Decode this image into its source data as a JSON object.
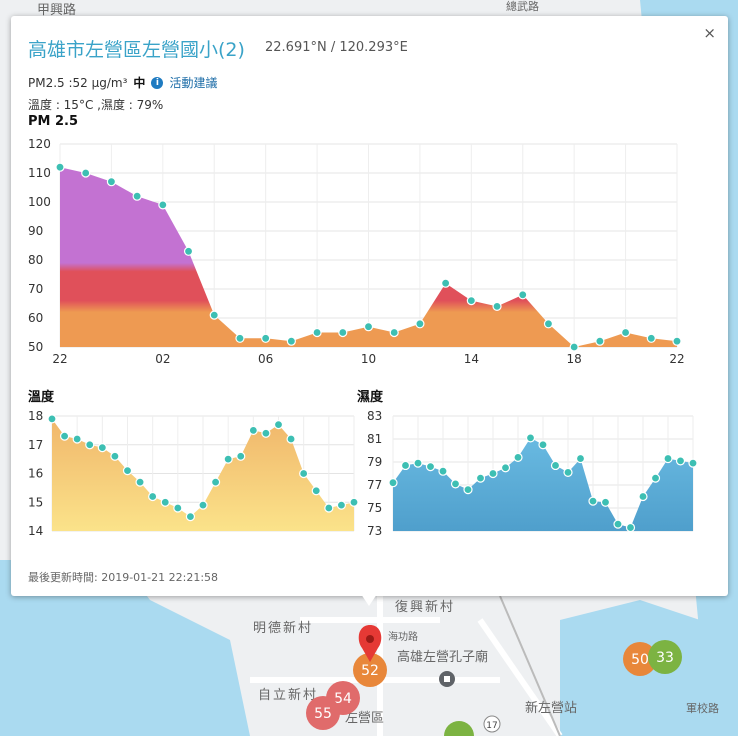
{
  "popup": {
    "title": "高雄市左營區左營國小(2)",
    "coords": "22.691°N / 120.293°E",
    "pm_label": "PM2.5 :52 μg/m³",
    "level": "中",
    "info_icon": "info-circle-icon",
    "advice_link": "活動建議",
    "weather": "溫度 : 15°C ,濕度 : 79%",
    "pm_chart_title": "PM 2.5",
    "temp_chart_title": "溫度",
    "humidity_chart_title": "濕度",
    "updated": "最後更新時間: 2019-01-21 22:21:58",
    "close_icon": "×"
  },
  "map": {
    "labels": [
      "甲興路",
      "明德新村",
      "復興新村",
      "海功路",
      "高雄左營孔子廟",
      "自立新村",
      "左營區",
      "新左營站",
      "軍校路",
      "總武路"
    ],
    "markers": [
      {
        "value": "52",
        "color": "#e8873a"
      },
      {
        "value": "54",
        "color": "#e06b6b"
      },
      {
        "value": "55",
        "color": "#e06b6b"
      },
      {
        "value": "50",
        "color": "#e8873a"
      },
      {
        "value": "33",
        "color": "#7cb342"
      }
    ],
    "pin_icon": "map-pin-icon",
    "temple_icon": "temple-icon",
    "road_number": "17"
  },
  "chart_data": [
    {
      "type": "area",
      "title": "PM 2.5",
      "x_tick_labels": [
        "22",
        "02",
        "06",
        "10",
        "14",
        "18",
        "22"
      ],
      "y_ticks": [
        50,
        60,
        70,
        80,
        90,
        100,
        110,
        120
      ],
      "ylim": [
        50,
        120
      ],
      "values": [
        112,
        110,
        107,
        102,
        99,
        83,
        61,
        53,
        53,
        52,
        55,
        55,
        57,
        55,
        58,
        72,
        66,
        64,
        68,
        58,
        50,
        52,
        55,
        53,
        52
      ],
      "grid": true,
      "colors": {
        "purple": "#c372d2",
        "red": "#e0505a",
        "orange": "#ee9a52",
        "dot": "#3dbfb3"
      }
    },
    {
      "type": "area",
      "title": "溫度",
      "y_ticks": [
        14,
        15,
        16,
        17,
        18
      ],
      "ylim": [
        14,
        18
      ],
      "values": [
        17.9,
        17.3,
        17.2,
        17.0,
        16.9,
        16.6,
        16.1,
        15.7,
        15.2,
        15.0,
        14.8,
        14.5,
        14.9,
        15.7,
        16.5,
        16.6,
        17.5,
        17.4,
        17.7,
        17.2,
        16.0,
        15.4,
        14.8,
        14.9,
        15.0
      ],
      "grid": true,
      "colors": {
        "fill": "#f5c77a",
        "dot": "#3dbfb3"
      }
    },
    {
      "type": "area",
      "title": "濕度",
      "y_ticks": [
        73,
        75,
        77,
        79,
        81,
        83
      ],
      "ylim": [
        73,
        83
      ],
      "values": [
        77.2,
        78.7,
        78.9,
        78.6,
        78.2,
        77.1,
        76.6,
        77.6,
        78.0,
        78.5,
        79.4,
        81.1,
        80.5,
        78.7,
        78.1,
        79.3,
        75.6,
        75.5,
        73.6,
        73.3,
        76.0,
        77.6,
        79.3,
        79.1,
        78.9
      ],
      "grid": true,
      "colors": {
        "fill": "#4fa9d4",
        "dot": "#3dbfb3"
      }
    }
  ]
}
